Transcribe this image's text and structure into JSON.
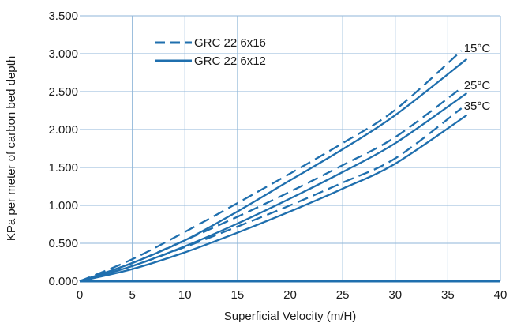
{
  "chart_data": {
    "type": "line",
    "title": "",
    "xlabel": "Superficial Velocity (m/H)",
    "ylabel": "KPa per meter of carbon bed depth",
    "xlim": [
      0,
      40
    ],
    "ylim": [
      0,
      3.5
    ],
    "xticks": [
      "0",
      "5",
      "10",
      "15",
      "20",
      "25",
      "30",
      "35",
      "40"
    ],
    "yticks": [
      "0.000",
      "0.500",
      "1.000",
      "1.500",
      "2.000",
      "2.500",
      "3.000",
      "3.500"
    ],
    "grid": true,
    "legend": [
      {
        "label": "GRC 22 6x16",
        "style": "dashed"
      },
      {
        "label": "GRC 22 6x12",
        "style": "solid"
      }
    ],
    "color": "#1f6fae",
    "series": [
      {
        "group": "GRC 22 6x16",
        "style": "dashed",
        "label": "15°C",
        "x": [
          0,
          5,
          10,
          15,
          20,
          25,
          30,
          36.3
        ],
        "y": [
          0,
          0.29,
          0.65,
          1.03,
          1.42,
          1.82,
          2.26,
          3.04
        ]
      },
      {
        "group": "GRC 22 6x12",
        "style": "solid",
        "label": "",
        "x": [
          0,
          5,
          10,
          15,
          20,
          25,
          30,
          36.8
        ],
        "y": [
          0,
          0.24,
          0.54,
          0.92,
          1.33,
          1.74,
          2.19,
          2.93
        ]
      },
      {
        "group": "GRC 22 6x16",
        "style": "dashed",
        "label": "25°C",
        "x": [
          0,
          5,
          10,
          15,
          20,
          25,
          30,
          36.3
        ],
        "y": [
          0,
          0.24,
          0.54,
          0.85,
          1.18,
          1.53,
          1.9,
          2.55
        ]
      },
      {
        "group": "GRC 22 6x12",
        "style": "solid",
        "label": "",
        "x": [
          0,
          5,
          10,
          15,
          20,
          25,
          30,
          36.8
        ],
        "y": [
          0,
          0.2,
          0.46,
          0.76,
          1.09,
          1.44,
          1.82,
          2.48
        ]
      },
      {
        "group": "GRC 22 6x16",
        "style": "dashed",
        "label": "35°C",
        "x": [
          0,
          5,
          10,
          15,
          20,
          25,
          30,
          36.3
        ],
        "y": [
          0,
          0.2,
          0.45,
          0.72,
          1.0,
          1.3,
          1.62,
          2.28
        ]
      },
      {
        "group": "GRC 22 6x12",
        "style": "solid",
        "label": "",
        "x": [
          0,
          5,
          10,
          15,
          20,
          25,
          30,
          36.8
        ],
        "y": [
          0,
          0.16,
          0.38,
          0.64,
          0.92,
          1.22,
          1.55,
          2.19
        ]
      }
    ]
  }
}
